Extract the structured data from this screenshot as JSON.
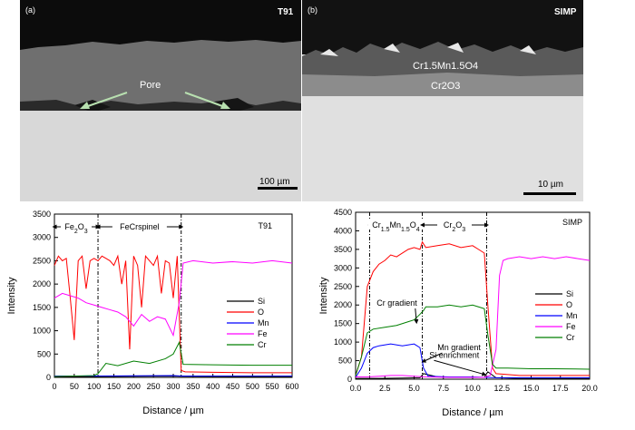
{
  "figures": {
    "left_image": {
      "panel_label": "(a)",
      "sample": "T91",
      "annotation": "Pore",
      "scale_bar": "100 µm"
    },
    "right_image": {
      "panel_label": "(b)",
      "sample": "SIMP",
      "layer_outer": "Cr1.5Mn1.5O4",
      "layer_inner": "Cr2O3",
      "scale_bar": "10 µm"
    }
  },
  "chart_data": [
    {
      "type": "line",
      "sample_label": "T91",
      "xlabel": "Distance / µm",
      "ylabel": "Intensity",
      "xlim": [
        0,
        600
      ],
      "ylim": [
        0,
        3500
      ],
      "xticks": [
        0,
        50,
        100,
        150,
        200,
        250,
        300,
        350,
        400,
        450,
        500,
        550,
        600
      ],
      "yticks": [
        0,
        500,
        1000,
        1500,
        2000,
        2500,
        3000,
        3500
      ],
      "region_labels": [
        "Fe2O3",
        "Fe-Cr spinel"
      ],
      "boundaries": [
        110,
        320
      ],
      "legend_position": "center-right",
      "series": [
        {
          "name": "Si",
          "color": "#000000",
          "x": [
            0,
            100,
            200,
            300,
            320,
            450,
            600
          ],
          "y": [
            20,
            20,
            25,
            30,
            25,
            20,
            20
          ]
        },
        {
          "name": "O",
          "color": "#ff0000",
          "x": [
            0,
            10,
            20,
            30,
            40,
            50,
            60,
            70,
            80,
            90,
            100,
            110,
            120,
            130,
            140,
            150,
            160,
            170,
            180,
            190,
            200,
            210,
            220,
            230,
            240,
            250,
            260,
            270,
            280,
            290,
            300,
            310,
            320,
            330,
            400,
            500,
            600
          ],
          "y": [
            2400,
            2600,
            2500,
            2550,
            1700,
            800,
            2500,
            2600,
            1900,
            2500,
            2550,
            2500,
            2600,
            2550,
            2500,
            2400,
            2600,
            2000,
            2500,
            600,
            2600,
            2400,
            1500,
            2600,
            2500,
            2400,
            2600,
            1800,
            2500,
            2450,
            1700,
            2600,
            150,
            120,
            110,
            100,
            100
          ]
        },
        {
          "name": "Mn",
          "color": "#0000ff",
          "x": [
            0,
            100,
            200,
            300,
            320,
            450,
            600
          ],
          "y": [
            30,
            30,
            35,
            40,
            30,
            30,
            30
          ]
        },
        {
          "name": "Fe",
          "color": "#ff00ff",
          "x": [
            0,
            20,
            40,
            60,
            80,
            100,
            120,
            140,
            160,
            180,
            200,
            220,
            240,
            260,
            280,
            300,
            315,
            325,
            350,
            400,
            450,
            500,
            550,
            600
          ],
          "y": [
            1700,
            1800,
            1750,
            1700,
            1600,
            1550,
            1500,
            1450,
            1400,
            1300,
            1100,
            1350,
            1200,
            1300,
            1250,
            900,
            1600,
            2450,
            2500,
            2450,
            2480,
            2450,
            2500,
            2450
          ]
        },
        {
          "name": "Cr",
          "color": "#007f00",
          "x": [
            0,
            50,
            100,
            110,
            130,
            160,
            200,
            240,
            280,
            300,
            315,
            325,
            400,
            500,
            600
          ],
          "y": [
            20,
            30,
            40,
            80,
            300,
            250,
            350,
            300,
            400,
            500,
            750,
            280,
            270,
            260,
            260
          ]
        }
      ]
    },
    {
      "type": "line",
      "sample_label": "SIMP",
      "xlabel": "Distance / µm",
      "ylabel": "Intensity",
      "xlim": [
        0,
        20
      ],
      "ylim": [
        0,
        4500
      ],
      "xticks": [
        "0.0",
        "2.5",
        "5.0",
        "7.5",
        "10.0",
        "12.5",
        "15.0",
        "17.5",
        "20.0"
      ],
      "yticks": [
        0,
        500,
        1000,
        1500,
        2000,
        2500,
        3000,
        3500,
        4000,
        4500
      ],
      "region_labels": [
        "Cr1.5Mn1.5O4",
        "Cr2O3"
      ],
      "boundaries": [
        1.2,
        5.7,
        11.2
      ],
      "annotations": [
        "Cr gradient",
        "Mn gradient",
        "Si enrichment"
      ],
      "legend_position": "center-right",
      "series": [
        {
          "name": "Si",
          "color": "#000000",
          "x": [
            0,
            2,
            4,
            5.5,
            5.8,
            7,
            9,
            11,
            11.3,
            12,
            14,
            17,
            20
          ],
          "y": [
            20,
            20,
            30,
            40,
            150,
            60,
            50,
            50,
            200,
            40,
            20,
            20,
            20
          ]
        },
        {
          "name": "O",
          "color": "#ff0000",
          "x": [
            0,
            0.5,
            1.0,
            1.5,
            2.0,
            2.5,
            3.0,
            3.5,
            4.0,
            4.5,
            5.0,
            5.5,
            5.7,
            6.0,
            7.0,
            8.0,
            9.0,
            10.0,
            10.5,
            11.0,
            11.3,
            11.7,
            12.0,
            14.0,
            16.0,
            18.0,
            20.0
          ],
          "y": [
            100,
            600,
            2500,
            2900,
            3100,
            3200,
            3350,
            3300,
            3400,
            3500,
            3550,
            3500,
            3700,
            3550,
            3600,
            3650,
            3550,
            3600,
            3500,
            3400,
            2000,
            300,
            150,
            100,
            100,
            100,
            100
          ]
        },
        {
          "name": "Mn",
          "color": "#0000ff",
          "x": [
            0,
            0.5,
            1.0,
            1.5,
            2.0,
            3.0,
            4.0,
            5.0,
            5.5,
            5.8,
            6.2,
            8.0,
            10.0,
            11.2,
            12.0,
            15.0,
            20.0
          ],
          "y": [
            50,
            300,
            700,
            850,
            900,
            950,
            900,
            950,
            850,
            300,
            80,
            60,
            60,
            50,
            40,
            40,
            40
          ]
        },
        {
          "name": "Fe",
          "color": "#ff00ff",
          "x": [
            0,
            1,
            2,
            3,
            4,
            5,
            6,
            8,
            10,
            11,
            11.5,
            12.0,
            12.3,
            12.6,
            13,
            14,
            15,
            16,
            17,
            18,
            19,
            20
          ],
          "y": [
            60,
            60,
            80,
            100,
            100,
            80,
            60,
            50,
            50,
            50,
            100,
            800,
            2800,
            3200,
            3250,
            3300,
            3250,
            3300,
            3250,
            3300,
            3250,
            3200
          ]
        },
        {
          "name": "Cr",
          "color": "#007f00",
          "x": [
            0,
            0.5,
            1.0,
            1.5,
            2.5,
            3.5,
            4.5,
            5.0,
            5.5,
            5.8,
            6.0,
            7.0,
            8.0,
            9.0,
            10.0,
            10.5,
            11.0,
            11.3,
            11.7,
            12.0,
            13.0,
            15.0,
            17.0,
            20.0
          ],
          "y": [
            100,
            600,
            1250,
            1350,
            1400,
            1450,
            1550,
            1600,
            1750,
            1850,
            1950,
            1950,
            2000,
            1950,
            2000,
            1950,
            1900,
            1200,
            400,
            300,
            300,
            280,
            280,
            270
          ]
        }
      ]
    }
  ]
}
